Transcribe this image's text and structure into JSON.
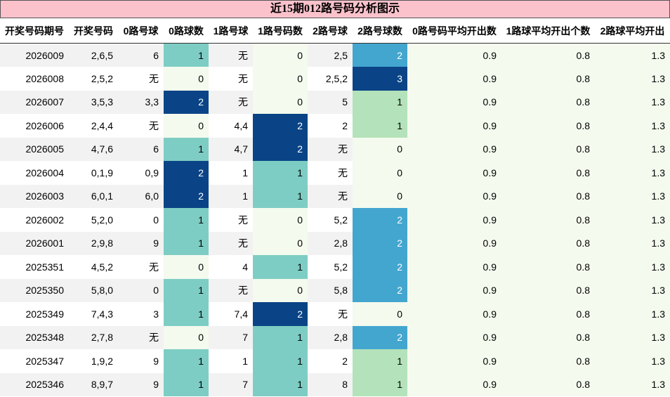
{
  "title": "近15期012路号码分析图示",
  "table": {
    "headers": [
      "开奖号码期号",
      "开奖号码",
      "0路号球",
      "0路球数",
      "1路号球",
      "1路号码数",
      "2路号球",
      "2路号球数",
      "0路号码平均开出数",
      "1路球平均开出个数",
      "2路球平均开出"
    ],
    "rows": [
      [
        "2026009",
        "2,6,5",
        "6",
        1,
        "无",
        0,
        "2,5",
        2,
        0.9,
        0.8,
        1.3
      ],
      [
        "2026008",
        "2,5,2",
        "无",
        0,
        "无",
        0,
        "2,5,2",
        3,
        0.9,
        0.8,
        1.3
      ],
      [
        "2026007",
        "3,5,3",
        "3,3",
        2,
        "无",
        0,
        "5",
        1,
        0.9,
        0.8,
        1.3
      ],
      [
        "2026006",
        "2,4,4",
        "无",
        0,
        "4,4",
        2,
        "2",
        1,
        0.9,
        0.8,
        1.3
      ],
      [
        "2026005",
        "4,7,6",
        "6",
        1,
        "4,7",
        2,
        "无",
        0,
        0.9,
        0.8,
        1.3
      ],
      [
        "2026004",
        "0,1,9",
        "0,9",
        2,
        "1",
        1,
        "无",
        0,
        0.9,
        0.8,
        1.3
      ],
      [
        "2026003",
        "6,0,1",
        "6,0",
        2,
        "1",
        1,
        "无",
        0,
        0.9,
        0.8,
        1.3
      ],
      [
        "2026002",
        "5,2,0",
        "0",
        1,
        "无",
        0,
        "5,2",
        2,
        0.9,
        0.8,
        1.3
      ],
      [
        "2026001",
        "2,9,8",
        "9",
        1,
        "无",
        0,
        "2,8",
        2,
        0.9,
        0.8,
        1.3
      ],
      [
        "2025351",
        "4,5,2",
        "无",
        0,
        "4",
        1,
        "5,2",
        2,
        0.9,
        0.8,
        1.3
      ],
      [
        "2025350",
        "5,8,0",
        "0",
        1,
        "无",
        0,
        "5,8",
        2,
        0.9,
        0.8,
        1.3
      ],
      [
        "2025349",
        "7,4,3",
        "3",
        1,
        "7,4",
        2,
        "无",
        0,
        0.9,
        0.8,
        1.3
      ],
      [
        "2025348",
        "2,7,8",
        "无",
        0,
        "7",
        1,
        "2,8",
        2,
        0.9,
        0.8,
        1.3
      ],
      [
        "2025347",
        "1,9,2",
        "9",
        1,
        "1",
        1,
        "2",
        1,
        0.9,
        0.8,
        1.3
      ],
      [
        "2025346",
        "8,9,7",
        "9",
        1,
        "7",
        1,
        "8",
        1,
        0.9,
        0.8,
        1.3
      ]
    ]
  }
}
